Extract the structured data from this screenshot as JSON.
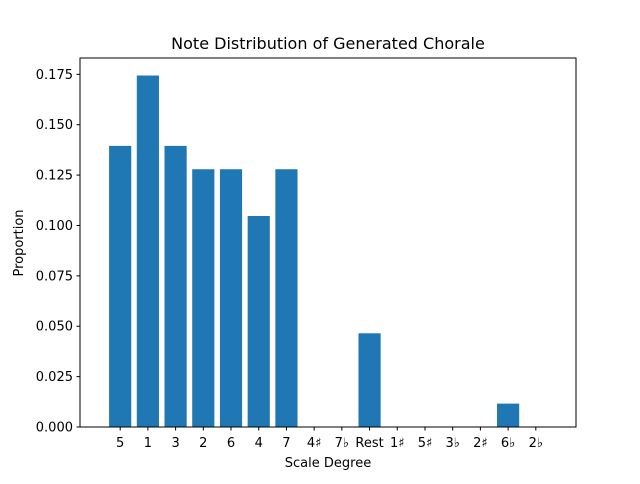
{
  "chart_data": {
    "type": "bar",
    "title": "Note Distribution of Generated Chorale",
    "xlabel": "Scale Degree",
    "ylabel": "Proportion",
    "categories": [
      "5",
      "1",
      "3",
      "2",
      "6",
      "4",
      "7",
      "4♯",
      "7♭",
      "Rest",
      "1♯",
      "5♯",
      "3♭",
      "2♯",
      "6♭",
      "2♭"
    ],
    "values": [
      0.1395,
      0.1744,
      0.1395,
      0.1279,
      0.1279,
      0.1047,
      0.1279,
      0.0,
      0.0,
      0.0465,
      0.0,
      0.0,
      0.0,
      0.0,
      0.0116,
      0.0
    ],
    "ylim": [
      0,
      0.1831
    ],
    "yticks": [
      0.0,
      0.025,
      0.05,
      0.075,
      0.1,
      0.125,
      0.15,
      0.175
    ],
    "ytick_labels": [
      "0.000",
      "0.025",
      "0.050",
      "0.075",
      "0.100",
      "0.125",
      "0.150",
      "0.175"
    ],
    "bar_color": "#1f77b4",
    "grid": false,
    "legend": "none"
  }
}
